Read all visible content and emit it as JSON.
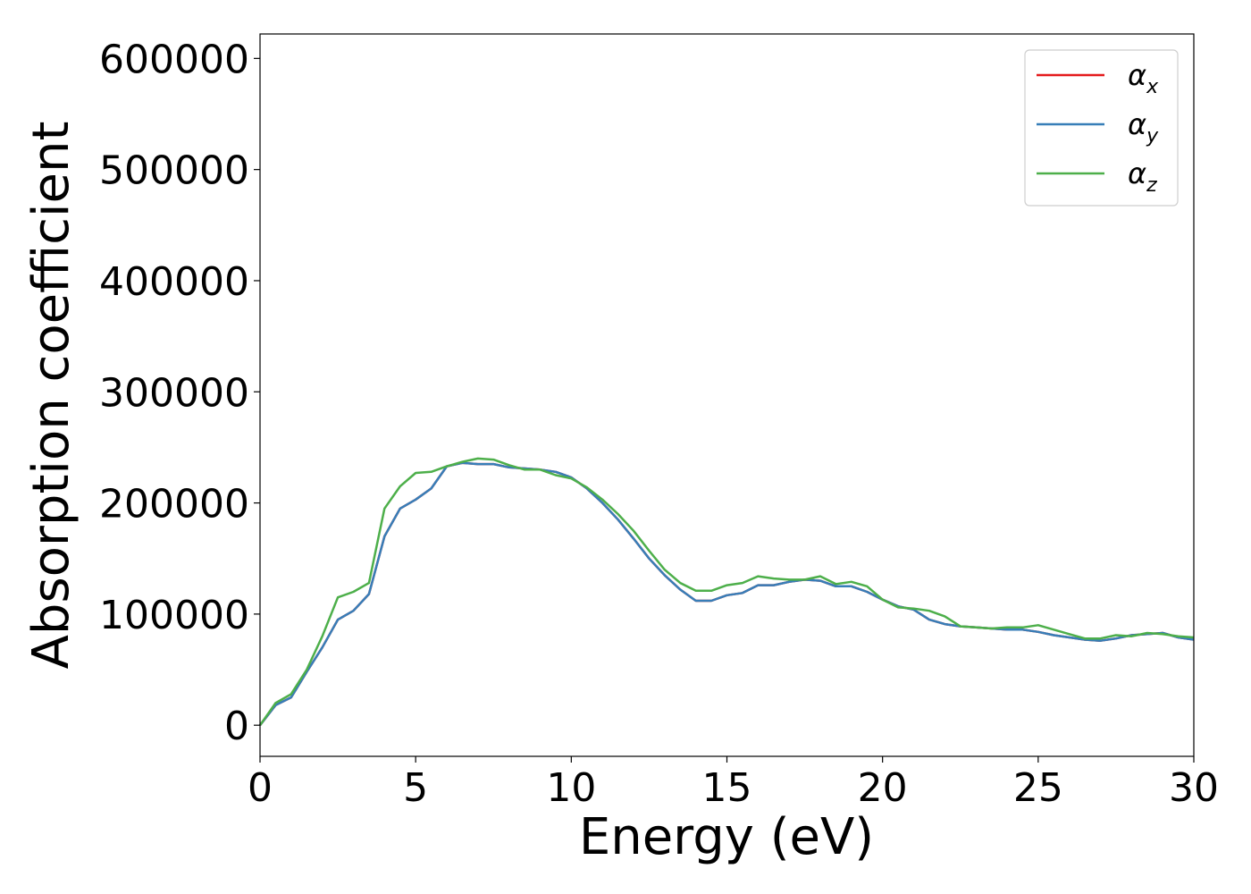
{
  "chart_data": {
    "type": "line",
    "title": "",
    "xlabel": "Energy (eV)",
    "ylabel": "Absorption coefficient",
    "xlim": [
      0,
      30
    ],
    "ylim": [
      -28000,
      622000
    ],
    "xticks": [
      0,
      5,
      10,
      15,
      20,
      25,
      30
    ],
    "yticks": [
      0,
      100000,
      200000,
      300000,
      400000,
      500000,
      600000
    ],
    "grid": false,
    "legend_position": "top-right",
    "series": [
      {
        "name": "αx",
        "name_base": "α",
        "name_sub": "x",
        "color": "#e41a1c",
        "x": [
          0,
          0.5,
          1,
          1.5,
          2,
          2.5,
          3,
          3.5,
          4,
          4.5,
          5,
          5.5,
          6,
          6.5,
          7,
          7.5,
          8,
          8.5,
          9,
          9.5,
          10,
          10.5,
          11,
          11.5,
          12,
          12.5,
          13,
          13.5,
          14,
          14.5,
          15,
          15.5,
          16,
          16.5,
          17,
          17.5,
          18,
          18.5,
          19,
          19.5,
          20,
          20.5,
          21,
          21.5,
          22,
          22.5,
          23,
          23.5,
          24,
          24.5,
          25,
          25.5,
          26,
          26.5,
          27,
          27.5,
          28,
          28.5,
          29,
          29.5,
          30
        ],
        "y": [
          0,
          18000,
          25000,
          48000,
          70000,
          95000,
          103000,
          118000,
          170000,
          195000,
          203000,
          213000,
          233000,
          236000,
          235000,
          235000,
          232000,
          231000,
          230000,
          228000,
          223000,
          213000,
          200000,
          185000,
          168000,
          150000,
          135000,
          122000,
          112000,
          112000,
          117000,
          119000,
          126000,
          126000,
          129000,
          131000,
          130000,
          125000,
          125000,
          120000,
          113000,
          107000,
          104000,
          95000,
          91000,
          89000,
          88000,
          87000,
          86000,
          86000,
          84000,
          81000,
          79000,
          77000,
          76000,
          78000,
          81000,
          82000,
          83000,
          79000,
          77000
        ]
      },
      {
        "name": "αy",
        "name_base": "α",
        "name_sub": "y",
        "color": "#377eb8",
        "x": [
          0,
          0.5,
          1,
          1.5,
          2,
          2.5,
          3,
          3.5,
          4,
          4.5,
          5,
          5.5,
          6,
          6.5,
          7,
          7.5,
          8,
          8.5,
          9,
          9.5,
          10,
          10.5,
          11,
          11.5,
          12,
          12.5,
          13,
          13.5,
          14,
          14.5,
          15,
          15.5,
          16,
          16.5,
          17,
          17.5,
          18,
          18.5,
          19,
          19.5,
          20,
          20.5,
          21,
          21.5,
          22,
          22.5,
          23,
          23.5,
          24,
          24.5,
          25,
          25.5,
          26,
          26.5,
          27,
          27.5,
          28,
          28.5,
          29,
          29.5,
          30
        ],
        "y": [
          0,
          18000,
          25000,
          48000,
          70000,
          95000,
          103000,
          118000,
          170000,
          195000,
          203000,
          213000,
          233000,
          236000,
          235000,
          235000,
          232000,
          231000,
          230000,
          228000,
          223000,
          213000,
          200000,
          185000,
          168000,
          150000,
          135000,
          122000,
          112000,
          112000,
          117000,
          119000,
          126000,
          126000,
          129000,
          131000,
          130000,
          125000,
          125000,
          120000,
          113000,
          107000,
          104000,
          95000,
          91000,
          89000,
          88000,
          87000,
          86000,
          86000,
          84000,
          81000,
          79000,
          77000,
          76000,
          78000,
          81000,
          82000,
          83000,
          79000,
          77000
        ]
      },
      {
        "name": "αz",
        "name_base": "α",
        "name_sub": "z",
        "color": "#4daf4a",
        "x": [
          0,
          0.5,
          1,
          1.5,
          2,
          2.5,
          3,
          3.5,
          4,
          4.5,
          5,
          5.5,
          6,
          6.5,
          7,
          7.5,
          8,
          8.5,
          9,
          9.5,
          10,
          10.5,
          11,
          11.5,
          12,
          12.5,
          13,
          13.5,
          14,
          14.5,
          15,
          15.5,
          16,
          16.5,
          17,
          17.5,
          18,
          18.5,
          19,
          19.5,
          20,
          20.5,
          21,
          21.5,
          22,
          22.5,
          23,
          23.5,
          24,
          24.5,
          25,
          25.5,
          26,
          26.5,
          27,
          27.5,
          28,
          28.5,
          29,
          29.5,
          30
        ],
        "y": [
          0,
          20000,
          28000,
          50000,
          80000,
          115000,
          120000,
          128000,
          195000,
          215000,
          227000,
          228000,
          233000,
          237000,
          240000,
          239000,
          234000,
          230000,
          230000,
          225000,
          222000,
          214000,
          203000,
          190000,
          175000,
          157000,
          140000,
          128000,
          121000,
          121000,
          126000,
          128000,
          134000,
          132000,
          131000,
          131000,
          134000,
          127000,
          129000,
          125000,
          113000,
          106000,
          105000,
          103000,
          98000,
          89000,
          88000,
          87000,
          88000,
          88000,
          90000,
          86000,
          82000,
          78000,
          78000,
          81000,
          80000,
          83000,
          82000,
          80000,
          79000
        ]
      }
    ]
  }
}
